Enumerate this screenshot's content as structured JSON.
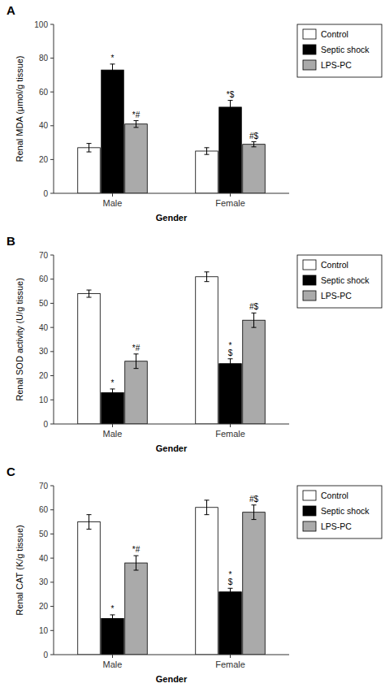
{
  "chart_data": [
    {
      "type": "bar",
      "title": "A",
      "xlabel": "Gender",
      "ylabel": "Renal MDA (μmol/g tissue)",
      "categories": [
        "Male",
        "Female"
      ],
      "series": [
        {
          "name": "Control",
          "color": "#ffffff",
          "values": [
            27,
            25
          ],
          "errors": [
            2.5,
            2
          ]
        },
        {
          "name": "Septic shock",
          "color": "#000000",
          "values": [
            73,
            51
          ],
          "errors": [
            3.5,
            4
          ],
          "annotations": [
            "*",
            "*$"
          ]
        },
        {
          "name": "LPS-PC",
          "color": "#aaaaaa",
          "values": [
            41,
            29
          ],
          "errors": [
            2,
            1.5
          ],
          "annotations": [
            "*#",
            "#$"
          ]
        }
      ],
      "ylim": [
        0,
        100
      ],
      "yticks": [
        0,
        20,
        40,
        60,
        80,
        100
      ],
      "grid": false,
      "legend": "right"
    },
    {
      "type": "bar",
      "title": "B",
      "xlabel": "Gender",
      "ylabel": "Renal SOD activity (U/g tissue)",
      "categories": [
        "Male",
        "Female"
      ],
      "series": [
        {
          "name": "Control",
          "color": "#ffffff",
          "values": [
            54,
            61
          ],
          "errors": [
            1.5,
            2
          ]
        },
        {
          "name": "Septic shock",
          "color": "#000000",
          "values": [
            13,
            25
          ],
          "errors": [
            1.5,
            2
          ],
          "annotations": [
            "*",
            "*\n$"
          ]
        },
        {
          "name": "LPS-PC",
          "color": "#aaaaaa",
          "values": [
            26,
            43
          ],
          "errors": [
            3,
            3
          ],
          "annotations": [
            "*#",
            "#$"
          ]
        }
      ],
      "ylim": [
        0,
        70
      ],
      "yticks": [
        0,
        10,
        20,
        30,
        40,
        50,
        60,
        70
      ],
      "grid": false,
      "legend": "right"
    },
    {
      "type": "bar",
      "title": "C",
      "xlabel": "Gender",
      "ylabel": "Renal CAT (K/g tissue)",
      "categories": [
        "Male",
        "Female"
      ],
      "series": [
        {
          "name": "Control",
          "color": "#ffffff",
          "values": [
            55,
            61
          ],
          "errors": [
            3,
            3
          ]
        },
        {
          "name": "Septic shock",
          "color": "#000000",
          "values": [
            15,
            26
          ],
          "errors": [
            1.5,
            1.5
          ],
          "annotations": [
            "*",
            "*\n$"
          ]
        },
        {
          "name": "LPS-PC",
          "color": "#aaaaaa",
          "values": [
            38,
            59
          ],
          "errors": [
            3,
            3
          ],
          "annotations": [
            "*#",
            "#$"
          ]
        }
      ],
      "ylim": [
        0,
        70
      ],
      "yticks": [
        0,
        10,
        20,
        30,
        40,
        50,
        60,
        70
      ],
      "grid": false,
      "legend": "right"
    }
  ]
}
